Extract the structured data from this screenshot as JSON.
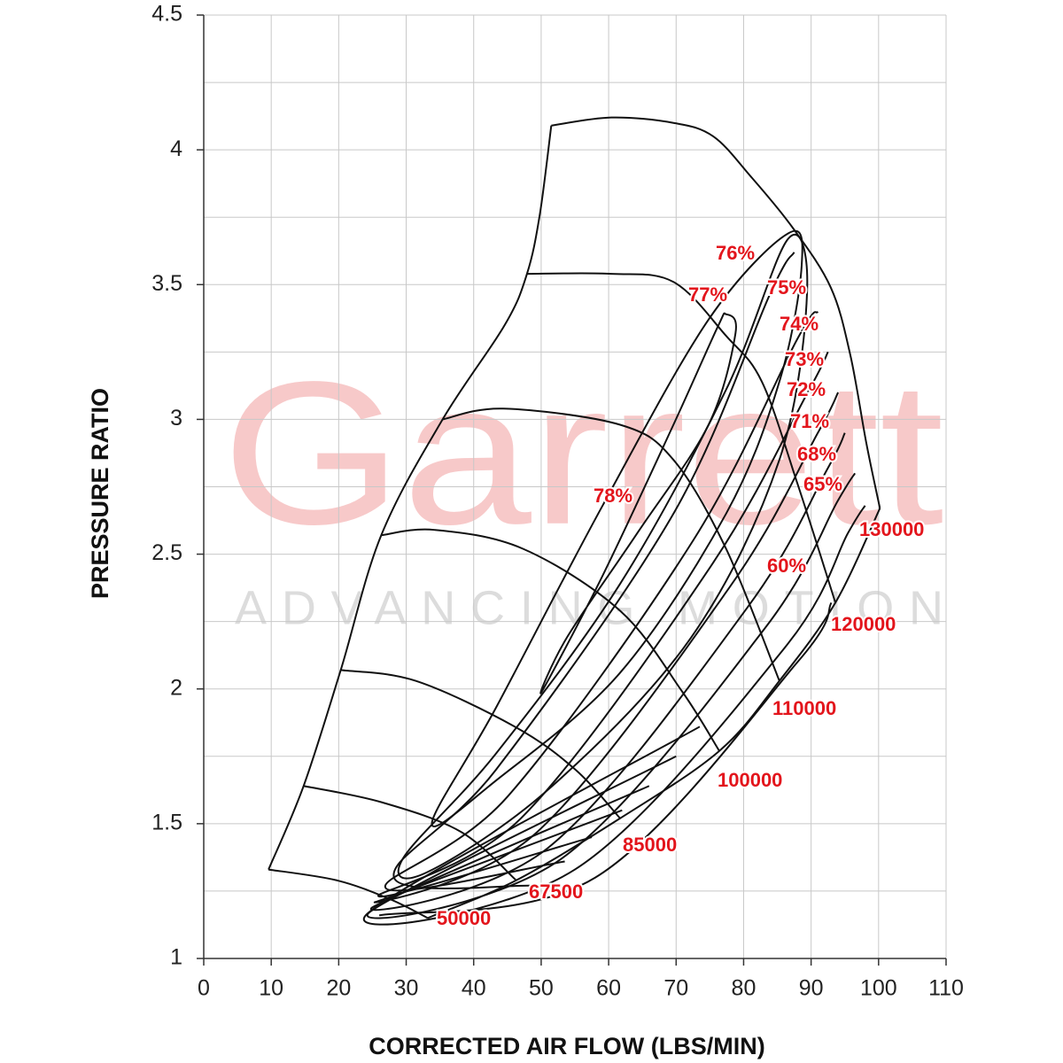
{
  "chart_data": {
    "type": "line",
    "watermark": "Garrett",
    "watermark_tagline": "ADVANCING MOTION",
    "x_label": "CORRECTED AIR FLOW (LBS/MIN)",
    "y_label": "PRESSURE RATIO",
    "xlim": [
      0,
      110
    ],
    "ylim": [
      1,
      4.5
    ],
    "xticks": [
      0,
      10,
      20,
      30,
      40,
      50,
      60,
      70,
      80,
      90,
      100,
      110
    ],
    "yticks": [
      1,
      1.5,
      2,
      2.5,
      3,
      3.5,
      4,
      4.5
    ],
    "y_minor_grid": [
      1.25,
      1.75,
      2.25,
      2.75,
      3.25,
      3.75,
      4.25
    ],
    "grid": true,
    "line_color": "#111111",
    "label_color": "#e3151c",
    "surge_line": {
      "x": [
        9.6,
        14.8,
        20.3,
        26.3,
        35.4,
        44.6,
        47.9,
        49.8,
        51.5
      ],
      "y": [
        1.33,
        1.64,
        2.07,
        2.57,
        3.0,
        3.35,
        3.54,
        3.76,
        4.09
      ]
    },
    "speed_lines": [
      {
        "name": "50000",
        "x": [
          9.6,
          19.7,
          27.6,
          33.2
        ],
        "y": [
          1.33,
          1.29,
          1.22,
          1.15
        ]
      },
      {
        "name": "67500",
        "x": [
          14.8,
          26.3,
          38.1,
          46.3
        ],
        "y": [
          1.64,
          1.58,
          1.47,
          1.29
        ]
      },
      {
        "name": "85000",
        "x": [
          20.3,
          31.4,
          46.1,
          55.1,
          61.7
        ],
        "y": [
          2.07,
          2.03,
          1.86,
          1.7,
          1.52
        ]
      },
      {
        "name": "100000",
        "x": [
          26.3,
          34.2,
          47.3,
          61.7,
          70.9,
          76.4
        ],
        "y": [
          2.57,
          2.59,
          2.52,
          2.29,
          1.99,
          1.77
        ]
      },
      {
        "name": "110000",
        "x": [
          35.4,
          44.4,
          61.7,
          69.6,
          77.4,
          85.3
        ],
        "y": [
          3.0,
          3.04,
          2.98,
          2.85,
          2.52,
          2.03
        ]
      },
      {
        "name": "120000",
        "x": [
          47.9,
          60.4,
          69.6,
          77.4,
          82.7,
          88.0,
          93.6
        ],
        "y": [
          3.54,
          3.54,
          3.51,
          3.31,
          3.14,
          2.76,
          2.32
        ]
      },
      {
        "name": "130000",
        "x": [
          51.5,
          60.4,
          69.6,
          75.5,
          81.1,
          87.3,
          92.9,
          95.8,
          98.2,
          100.2
        ],
        "y": [
          4.09,
          4.12,
          4.1,
          4.05,
          3.9,
          3.71,
          3.49,
          3.24,
          2.91,
          2.67
        ]
      }
    ],
    "choke_line": {
      "x": [
        33.2,
        46.3,
        61.7,
        76.4,
        85.3,
        93.6,
        100.2
      ],
      "y": [
        1.15,
        1.29,
        1.52,
        1.77,
        2.03,
        2.32,
        2.67
      ]
    },
    "efficiency_contours": [
      {
        "name": "78%",
        "closed": true,
        "x": [
          50.1,
          59.1,
          69.6,
          76.1,
          77.4,
          78.8,
          74.8,
          64.3,
          53.8
        ],
        "y": [
          1.99,
          2.42,
          2.98,
          3.34,
          3.39,
          3.32,
          2.98,
          2.58,
          2.19
        ]
      },
      {
        "name": "77%",
        "closed": true,
        "x": [
          33.8,
          43.3,
          59.1,
          74.8,
          86.6,
          88.6,
          85.3,
          77.4,
          61.7,
          43.3
        ],
        "y": [
          1.5,
          1.93,
          2.68,
          3.37,
          3.69,
          3.57,
          3.14,
          2.65,
          2.06,
          1.66
        ]
      },
      {
        "name": "76%",
        "closed": true,
        "x": [
          29.5,
          43.3,
          61.7,
          77.4,
          86.6,
          89.4,
          85.3,
          72.2,
          51.2,
          33.1
        ],
        "y": [
          1.37,
          1.76,
          2.39,
          3.11,
          3.67,
          3.47,
          2.85,
          2.19,
          1.63,
          1.32
        ]
      },
      {
        "name": "75%",
        "closed": false,
        "x": [
          48.6,
          28.2,
          43.3,
          69.6,
          84.0,
          87.5
        ],
        "y": [
          1.27,
          1.3,
          1.7,
          2.65,
          3.47,
          3.62
        ]
      },
      {
        "name": "74%",
        "closed": false,
        "x": [
          53.5,
          27.0,
          45.0,
          72.5,
          88.0,
          91.0
        ],
        "y": [
          1.36,
          1.26,
          1.6,
          2.55,
          3.3,
          3.4
        ]
      },
      {
        "name": "73%",
        "closed": false,
        "x": [
          57.5,
          26.0,
          47.0,
          75.0,
          89.5,
          92.5
        ],
        "y": [
          1.45,
          1.23,
          1.52,
          2.45,
          3.1,
          3.25
        ]
      },
      {
        "name": "72%",
        "closed": false,
        "x": [
          62.0,
          25.5,
          49.0,
          78.0,
          91.0,
          94.0
        ],
        "y": [
          1.55,
          1.21,
          1.46,
          2.38,
          2.95,
          3.1
        ]
      },
      {
        "name": "71%",
        "closed": false,
        "x": [
          66.0,
          25.0,
          51.0,
          80.5,
          92.5,
          95.0
        ],
        "y": [
          1.64,
          1.19,
          1.41,
          2.3,
          2.82,
          2.95
        ]
      },
      {
        "name": "68%",
        "closed": false,
        "x": [
          70.0,
          24.5,
          53.0,
          83.0,
          94.0,
          96.5
        ],
        "y": [
          1.75,
          1.17,
          1.37,
          2.22,
          2.7,
          2.8
        ]
      },
      {
        "name": "65%",
        "closed": false,
        "x": [
          73.5,
          24.0,
          55.0,
          86.0,
          95.5,
          98.0
        ],
        "y": [
          1.86,
          1.16,
          1.33,
          2.15,
          2.58,
          2.68
        ]
      },
      {
        "name": "60%",
        "closed": false,
        "x": [
          26.0,
          58.0,
          88.0,
          93.0
        ],
        "y": [
          1.16,
          1.3,
          2.1,
          2.32
        ]
      }
    ]
  }
}
